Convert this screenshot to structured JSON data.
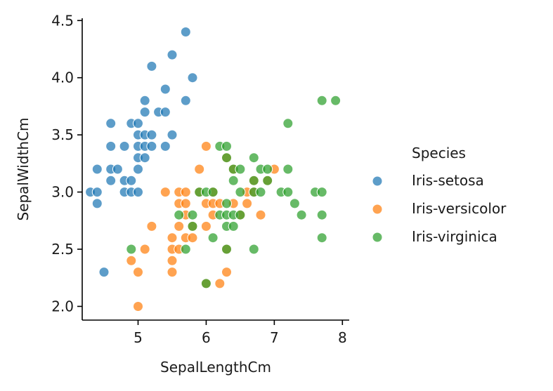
{
  "chart_data": {
    "type": "scatter",
    "xlabel": "SepalLengthCm",
    "ylabel": "SepalWidthCm",
    "xlim": [
      4.18,
      8.1
    ],
    "ylim": [
      1.88,
      4.52
    ],
    "xticks": [
      5,
      6,
      7,
      8
    ],
    "yticks": [
      2.0,
      2.5,
      3.0,
      3.5,
      4.0,
      4.5
    ],
    "xtick_labels": [
      "5",
      "6",
      "7",
      "8"
    ],
    "ytick_labels": [
      "2.0",
      "2.5",
      "3.0",
      "3.5",
      "4.0",
      "4.5"
    ],
    "grid": false,
    "legend": {
      "title": "Species",
      "placement": "right"
    },
    "series": [
      {
        "name": "Iris-setosa",
        "color": "#1f77b4",
        "points": [
          [
            4.3,
            3.0
          ],
          [
            4.4,
            3.0
          ],
          [
            4.4,
            2.9
          ],
          [
            4.4,
            3.2
          ],
          [
            4.5,
            2.3
          ],
          [
            4.6,
            3.1
          ],
          [
            4.6,
            3.4
          ],
          [
            4.6,
            3.6
          ],
          [
            4.6,
            3.2
          ],
          [
            4.7,
            3.2
          ],
          [
            4.8,
            3.4
          ],
          [
            4.8,
            3.0
          ],
          [
            4.8,
            3.1
          ],
          [
            4.9,
            3.0
          ],
          [
            4.9,
            3.1
          ],
          [
            4.9,
            3.6
          ],
          [
            5.0,
            3.6
          ],
          [
            5.0,
            3.4
          ],
          [
            5.0,
            3.0
          ],
          [
            5.0,
            3.3
          ],
          [
            5.0,
            3.5
          ],
          [
            5.0,
            3.2
          ],
          [
            5.1,
            3.5
          ],
          [
            5.1,
            3.8
          ],
          [
            5.1,
            3.7
          ],
          [
            5.1,
            3.3
          ],
          [
            5.1,
            3.4
          ],
          [
            5.2,
            3.5
          ],
          [
            5.2,
            3.4
          ],
          [
            5.2,
            4.1
          ],
          [
            5.3,
            3.7
          ],
          [
            5.4,
            3.9
          ],
          [
            5.4,
            3.7
          ],
          [
            5.4,
            3.4
          ],
          [
            5.5,
            4.2
          ],
          [
            5.5,
            3.5
          ],
          [
            5.7,
            4.4
          ],
          [
            5.7,
            3.8
          ],
          [
            5.8,
            4.0
          ]
        ]
      },
      {
        "name": "Iris-versicolor",
        "color": "#ff7f0e",
        "points": [
          [
            4.9,
            2.4
          ],
          [
            5.0,
            2.0
          ],
          [
            5.0,
            2.3
          ],
          [
            5.1,
            2.5
          ],
          [
            5.2,
            2.7
          ],
          [
            5.4,
            3.0
          ],
          [
            5.5,
            2.3
          ],
          [
            5.5,
            2.4
          ],
          [
            5.5,
            2.5
          ],
          [
            5.5,
            2.6
          ],
          [
            5.6,
            2.9
          ],
          [
            5.6,
            3.0
          ],
          [
            5.6,
            2.5
          ],
          [
            5.6,
            2.7
          ],
          [
            5.7,
            2.8
          ],
          [
            5.7,
            2.6
          ],
          [
            5.7,
            2.9
          ],
          [
            5.7,
            3.0
          ],
          [
            5.8,
            2.7
          ],
          [
            5.8,
            2.6
          ],
          [
            5.9,
            3.0
          ],
          [
            5.9,
            3.2
          ],
          [
            6.0,
            2.2
          ],
          [
            6.0,
            2.9
          ],
          [
            6.0,
            2.7
          ],
          [
            6.0,
            3.4
          ],
          [
            6.1,
            2.9
          ],
          [
            6.1,
            2.8
          ],
          [
            6.1,
            3.0
          ],
          [
            6.2,
            2.2
          ],
          [
            6.2,
            2.9
          ],
          [
            6.3,
            3.3
          ],
          [
            6.3,
            2.5
          ],
          [
            6.3,
            2.3
          ],
          [
            6.4,
            3.2
          ],
          [
            6.4,
            2.9
          ],
          [
            6.5,
            2.8
          ],
          [
            6.6,
            2.9
          ],
          [
            6.6,
            3.0
          ],
          [
            6.7,
            3.1
          ],
          [
            6.7,
            3.0
          ],
          [
            6.8,
            2.8
          ],
          [
            6.9,
            3.1
          ],
          [
            7.0,
            3.2
          ]
        ]
      },
      {
        "name": "Iris-virginica",
        "color": "#2ca02c",
        "points": [
          [
            4.9,
            2.5
          ],
          [
            5.6,
            2.8
          ],
          [
            5.7,
            2.5
          ],
          [
            5.8,
            2.7
          ],
          [
            5.8,
            2.8
          ],
          [
            5.9,
            3.0
          ],
          [
            6.0,
            2.2
          ],
          [
            6.0,
            3.0
          ],
          [
            6.1,
            3.0
          ],
          [
            6.1,
            2.6
          ],
          [
            6.2,
            2.8
          ],
          [
            6.2,
            3.4
          ],
          [
            6.3,
            3.3
          ],
          [
            6.3,
            2.9
          ],
          [
            6.3,
            2.5
          ],
          [
            6.3,
            2.8
          ],
          [
            6.3,
            3.4
          ],
          [
            6.3,
            2.7
          ],
          [
            6.4,
            2.8
          ],
          [
            6.4,
            3.2
          ],
          [
            6.4,
            3.1
          ],
          [
            6.4,
            2.7
          ],
          [
            6.5,
            3.0
          ],
          [
            6.5,
            3.2
          ],
          [
            6.5,
            2.8
          ],
          [
            6.7,
            3.3
          ],
          [
            6.7,
            3.0
          ],
          [
            6.7,
            2.5
          ],
          [
            6.7,
            3.1
          ],
          [
            6.8,
            3.0
          ],
          [
            6.8,
            3.2
          ],
          [
            6.9,
            3.1
          ],
          [
            6.9,
            3.2
          ],
          [
            7.1,
            3.0
          ],
          [
            7.2,
            3.6
          ],
          [
            7.2,
            3.2
          ],
          [
            7.2,
            3.0
          ],
          [
            7.3,
            2.9
          ],
          [
            7.4,
            2.8
          ],
          [
            7.6,
            3.0
          ],
          [
            7.7,
            3.8
          ],
          [
            7.7,
            2.6
          ],
          [
            7.7,
            2.8
          ],
          [
            7.7,
            3.0
          ],
          [
            7.9,
            3.8
          ]
        ]
      }
    ]
  }
}
